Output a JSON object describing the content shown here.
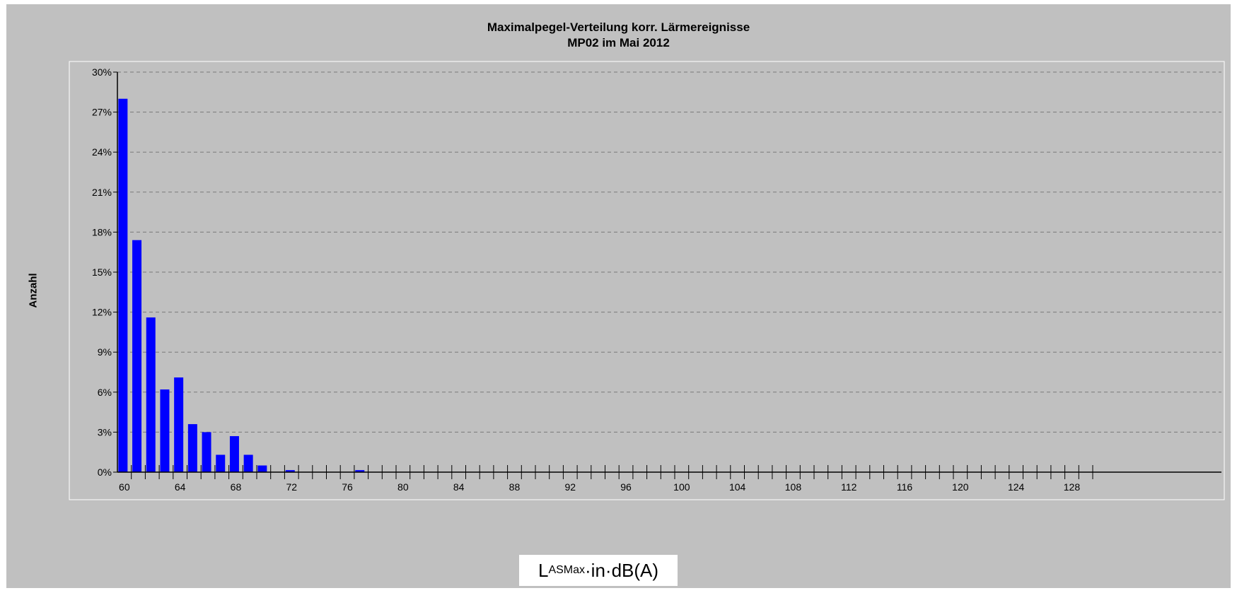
{
  "chart_data": {
    "type": "bar",
    "title": "Maximalpegel-Verteilung korr. Lärmereignisse",
    "subtitle": "MP02 im Mai 2012",
    "ylabel": "Anzahl",
    "xlabel": {
      "main": "L",
      "sub": "ASMax",
      "rest": "·in·dB(A)"
    },
    "xlim": [
      59,
      130
    ],
    "ylim": [
      0,
      30
    ],
    "y_ticks": [
      "0%",
      "3%",
      "6%",
      "9%",
      "12%",
      "15%",
      "18%",
      "21%",
      "24%",
      "27%",
      "30%"
    ],
    "x_tick_labels": [
      "60",
      "64",
      "68",
      "72",
      "76",
      "80",
      "84",
      "88",
      "92",
      "96",
      "100",
      "104",
      "108",
      "112",
      "116",
      "120",
      "124",
      "128"
    ],
    "categories": [
      60,
      61,
      62,
      63,
      64,
      65,
      66,
      67,
      68,
      69,
      70,
      72,
      77
    ],
    "values": [
      28.0,
      17.4,
      11.6,
      6.2,
      7.1,
      3.6,
      3.0,
      1.3,
      2.7,
      1.3,
      0.5,
      0.15,
      0.15
    ],
    "grid": true,
    "bar_color": "#0000ff"
  }
}
